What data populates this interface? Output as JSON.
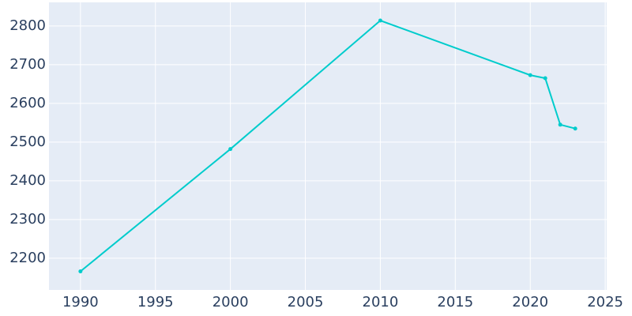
{
  "chart_data": {
    "type": "line",
    "x": [
      1990,
      2000,
      2010,
      2020,
      2021,
      2022,
      2023
    ],
    "series": [
      {
        "color": "#00cccc",
        "values": [
          2166,
          2482,
          2814,
          2673,
          2665,
          2545,
          2535
        ]
      }
    ],
    "xlim": [
      1987.9,
      2025.1
    ],
    "xticks": [
      1990,
      1995,
      2000,
      2005,
      2010,
      2015,
      2020,
      2025
    ],
    "ylim": [
      2118,
      2861
    ],
    "yticks": [
      2200,
      2300,
      2400,
      2500,
      2600,
      2700,
      2800
    ],
    "grid": true
  }
}
